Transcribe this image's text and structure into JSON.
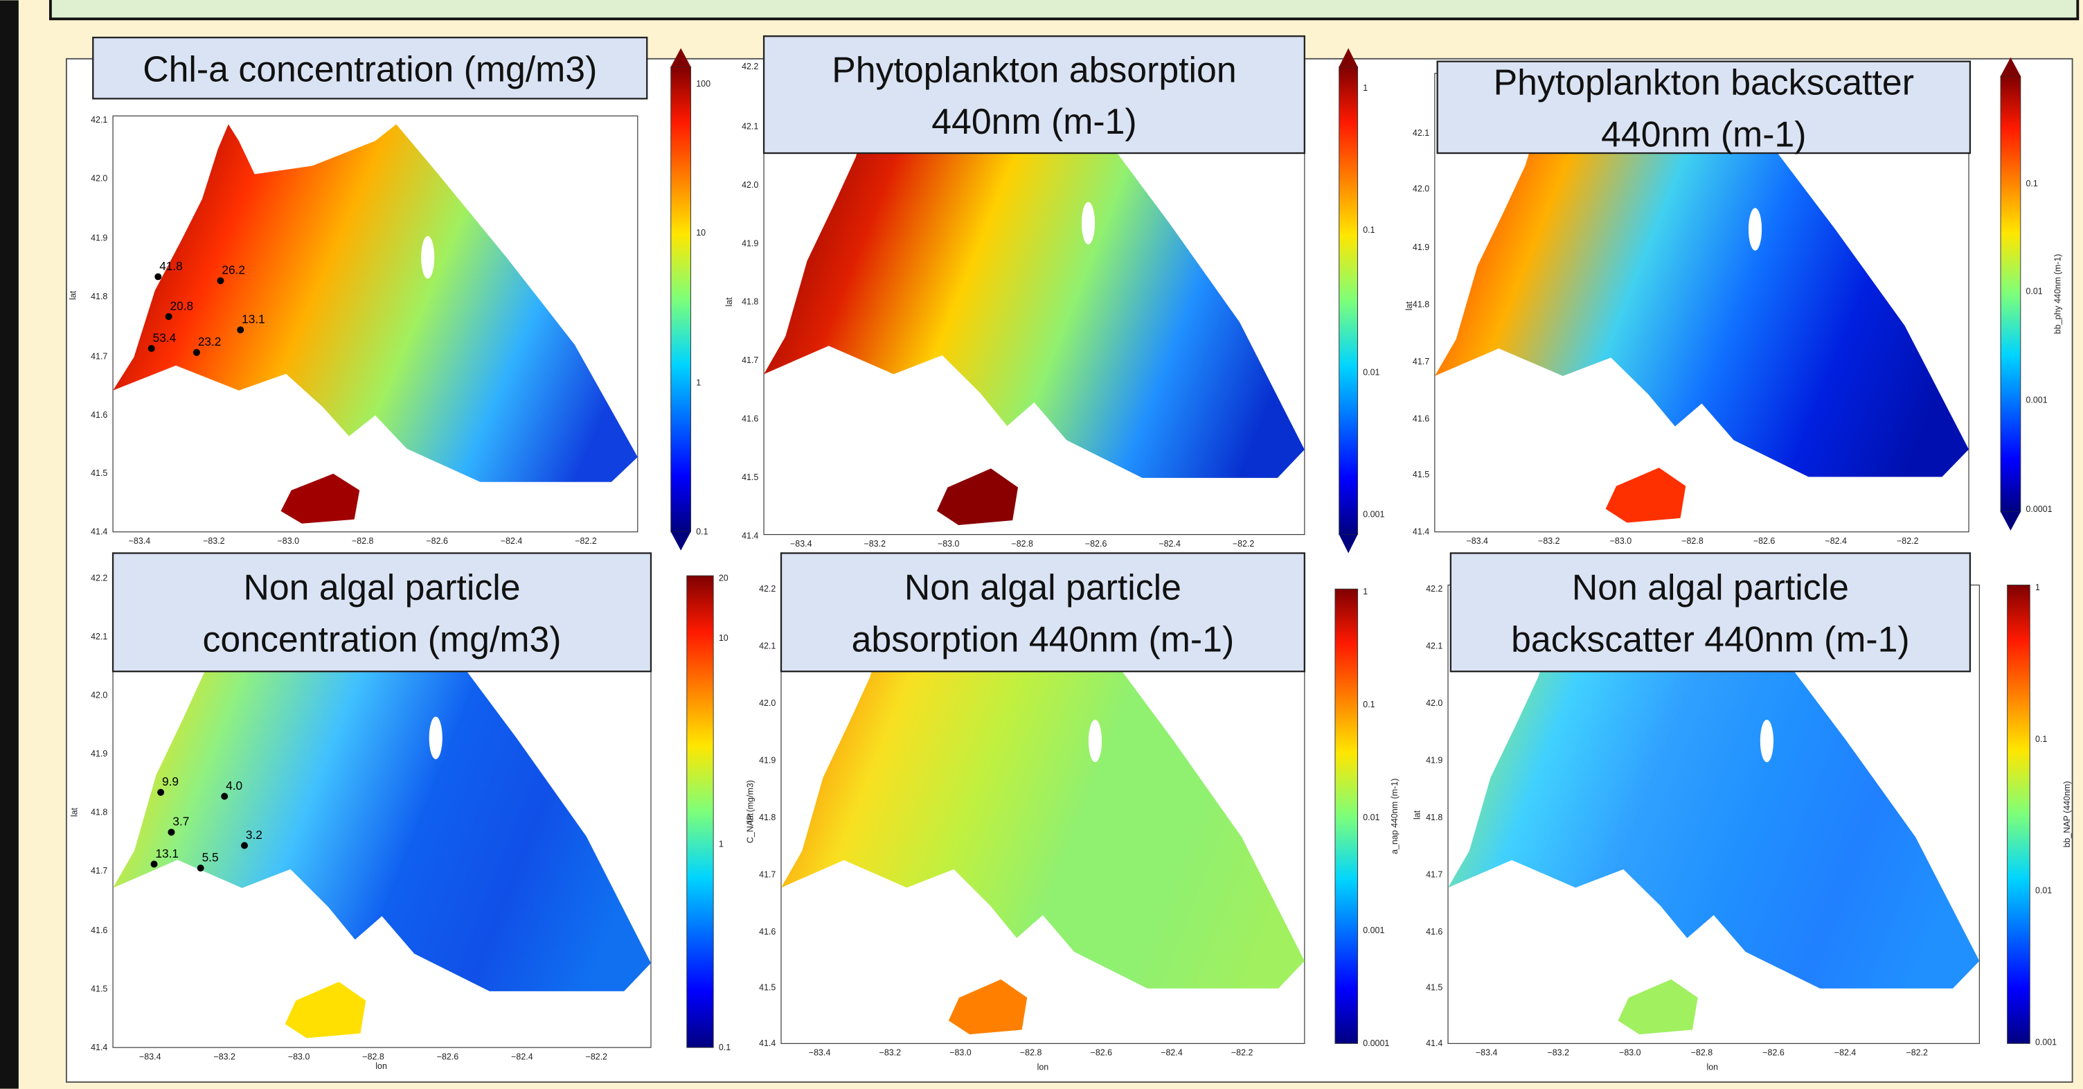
{
  "panels": [
    {
      "title_lines": [
        "Chl-a concentration (mg/m3)"
      ],
      "ylabel": "lat",
      "yticks": [
        "42.1",
        "42.0",
        "41.9",
        "41.8",
        "41.7",
        "41.6",
        "41.5",
        "41.4"
      ],
      "xticks": [
        "−83.4",
        "−83.2",
        "−83.0",
        "−82.8",
        "−82.6",
        "−82.4",
        "−82.2"
      ],
      "colorbar": {
        "ticks": [
          "100",
          "10",
          "1",
          "0.1"
        ]
      },
      "stations": [
        "41.8",
        "26.2",
        "20.8",
        "13.1",
        "53.4",
        "23.2"
      ]
    },
    {
      "title_lines": [
        "Phytoplankton absorption",
        "440nm (m-1)"
      ],
      "ylabel": "lat",
      "yticks": [
        "42.2",
        "42.1",
        "42.0",
        "41.9",
        "41.8",
        "41.7",
        "41.6",
        "41.5",
        "41.4"
      ],
      "xticks": [
        "−83.4",
        "−83.2",
        "−83.0",
        "−82.8",
        "−82.6",
        "−82.4",
        "−82.2"
      ],
      "colorbar": {
        "ticks": [
          "1",
          "0.1",
          "0.01",
          "0.001"
        ]
      }
    },
    {
      "title_lines": [
        "Phytoplankton backscatter",
        "440nm (m-1)"
      ],
      "ylabel": "lat",
      "yticks": [
        "42.1",
        "42.0",
        "41.9",
        "41.8",
        "41.7",
        "41.6",
        "41.5",
        "41.4"
      ],
      "xticks": [
        "−83.4",
        "−83.2",
        "−83.0",
        "−82.8",
        "−82.6",
        "−82.4",
        "−82.2"
      ],
      "colorbar": {
        "label": "bb_phy 440nm (m-1)",
        "ticks": [
          "0.1",
          "0.01",
          "0.001",
          "0.0001"
        ]
      }
    },
    {
      "title_lines": [
        "Non algal particle",
        "concentration (mg/m3)"
      ],
      "ylabel": "lat",
      "xlabel": "lon",
      "yticks": [
        "42.2",
        "42.1",
        "42.0",
        "41.9",
        "41.8",
        "41.7",
        "41.6",
        "41.5",
        "41.4"
      ],
      "xticks": [
        "−83.4",
        "−83.2",
        "−83.0",
        "−82.8",
        "−82.6",
        "−82.4",
        "−82.2"
      ],
      "colorbar": {
        "label": "C_NAP (mg/m3)",
        "ticks": [
          "20",
          "10",
          "1",
          "0.1"
        ]
      },
      "stations": [
        "9.9",
        "4.0",
        "3.7",
        "3.2",
        "13.1",
        "5.5"
      ]
    },
    {
      "title_lines": [
        "Non algal particle",
        "absorption 440nm (m-1)"
      ],
      "ylabel": "lat",
      "xlabel": "lon",
      "yticks": [
        "42.2",
        "42.1",
        "42.0",
        "41.9",
        "41.8",
        "41.7",
        "41.6",
        "41.5",
        "41.4"
      ],
      "xticks": [
        "−83.4",
        "−83.2",
        "−83.0",
        "−82.8",
        "−82.6",
        "−82.4",
        "−82.2"
      ],
      "colorbar": {
        "label": "a_nap 440nm (m-1)",
        "ticks": [
          "1",
          "0.1",
          "0.01",
          "0.001",
          "0.0001"
        ]
      }
    },
    {
      "title_lines": [
        "Non algal particle",
        "backscatter 440nm (m-1)"
      ],
      "ylabel": "lat",
      "xlabel": "lon",
      "yticks": [
        "42.2",
        "42.1",
        "42.0",
        "41.9",
        "41.8",
        "41.7",
        "41.6",
        "41.5",
        "41.4"
      ],
      "xticks": [
        "−83.4",
        "−83.2",
        "−83.0",
        "−82.8",
        "−82.6",
        "−82.4",
        "−82.2"
      ],
      "colorbar": {
        "label": "bb_NAP (440nm)",
        "ticks": [
          "1",
          "0.1",
          "0.01",
          "0.001"
        ]
      }
    }
  ]
}
